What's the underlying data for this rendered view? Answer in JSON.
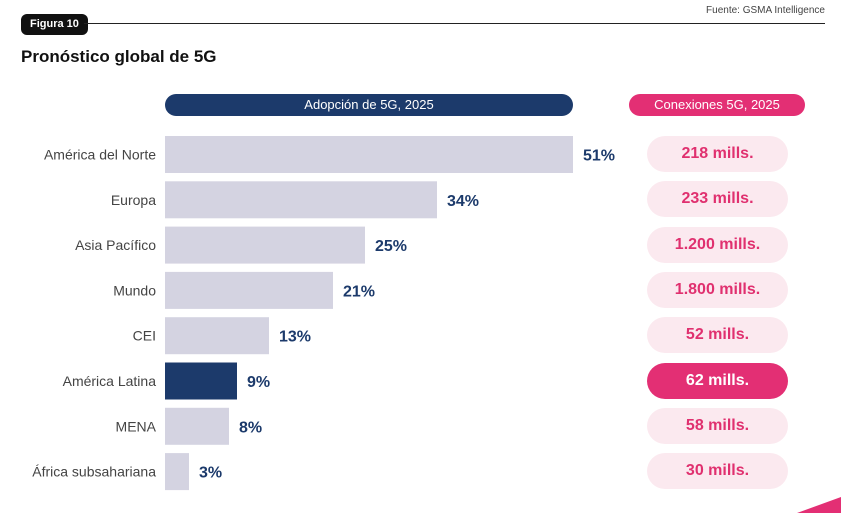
{
  "figure_label": "Figura 10",
  "source": "Fuente: GSMA Intelligence",
  "title": "Pronóstico global de 5G",
  "headers": {
    "adoption": "Adopción de 5G, 2025",
    "connections": "Conexiones 5G, 2025"
  },
  "colors": {
    "bar": "#d4d3e1",
    "bar_highlight": "#1c3a6b",
    "value_text": "#1c3a6b",
    "connections_text": "#e0306f",
    "connections_pill": "#fbe9ef",
    "connections_highlight": "#e32f74"
  },
  "chart_data": {
    "type": "bar",
    "orientation": "horizontal",
    "categories": [
      "América del Norte",
      "Europa",
      "Asia Pacífico",
      "Mundo",
      "CEI",
      "América Latina",
      "MENA",
      "África subsahariana"
    ],
    "values": [
      51,
      34,
      25,
      21,
      13,
      9,
      8,
      3
    ],
    "value_labels": [
      "51%",
      "34%",
      "25%",
      "21%",
      "13%",
      "9%",
      "8%",
      "3%"
    ],
    "highlight_category": "América Latina",
    "xlim": [
      0,
      51
    ],
    "grid": false,
    "connections": [
      "218 mills.",
      "233 mills.",
      "1.200 mills.",
      "1.800 mills.",
      "52 mills.",
      "62 mills.",
      "58 mills.",
      "30 mills."
    ]
  }
}
